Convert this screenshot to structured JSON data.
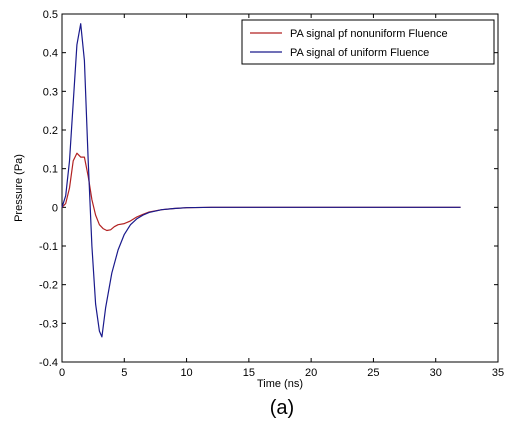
{
  "chart_data": {
    "type": "line",
    "xlabel": "Time (ns)",
    "ylabel": "Pressure (Pa)",
    "xlim": [
      0,
      35
    ],
    "ylim": [
      -0.4,
      0.5
    ],
    "xticks": [
      0,
      5,
      10,
      15,
      20,
      25,
      30,
      35
    ],
    "xtick_labels": [
      "0",
      "5",
      "10",
      "15",
      "20",
      "25",
      "30",
      "35"
    ],
    "yticks": [
      -0.4,
      -0.3,
      -0.2,
      -0.1,
      0,
      0.1,
      0.2,
      0.3,
      0.4,
      0.5
    ],
    "ytick_labels": [
      "-0.4",
      "-0.3",
      "-0.2",
      "-0.1",
      "0",
      "0.1",
      "0.2",
      "0.3",
      "0.4",
      "0.5"
    ],
    "grid": false,
    "legend": "top-right",
    "caption": "(a)",
    "series": [
      {
        "name": "PA signal pf nonuniform Fluence",
        "color": "#b22222",
        "x": [
          0,
          0.3,
          0.6,
          0.9,
          1.2,
          1.5,
          1.8,
          2.1,
          2.4,
          2.7,
          3.0,
          3.3,
          3.6,
          3.9,
          4.2,
          4.5,
          5,
          5.5,
          6,
          6.5,
          7,
          8,
          9,
          10,
          12,
          15,
          20,
          25,
          30,
          32
        ],
        "y": [
          0,
          0.01,
          0.05,
          0.12,
          0.14,
          0.13,
          0.13,
          0.08,
          0.02,
          -0.02,
          -0.045,
          -0.055,
          -0.06,
          -0.058,
          -0.05,
          -0.045,
          -0.042,
          -0.035,
          -0.025,
          -0.018,
          -0.012,
          -0.006,
          -0.003,
          -0.001,
          0,
          0,
          0,
          0,
          0,
          0
        ]
      },
      {
        "name": "PA signal of uniform Fluence",
        "color": "#1a1a8c",
        "x": [
          0,
          0.3,
          0.6,
          0.9,
          1.2,
          1.5,
          1.8,
          2.1,
          2.4,
          2.7,
          3.0,
          3.2,
          3.5,
          4,
          4.5,
          5,
          5.5,
          6,
          6.5,
          7,
          8,
          9,
          10,
          12,
          15,
          20,
          25,
          30,
          32
        ],
        "y": [
          0,
          0.03,
          0.12,
          0.27,
          0.42,
          0.475,
          0.38,
          0.12,
          -0.1,
          -0.25,
          -0.32,
          -0.335,
          -0.26,
          -0.17,
          -0.11,
          -0.07,
          -0.045,
          -0.03,
          -0.02,
          -0.013,
          -0.006,
          -0.003,
          -0.001,
          0,
          0,
          0,
          0,
          0,
          0
        ]
      }
    ]
  }
}
